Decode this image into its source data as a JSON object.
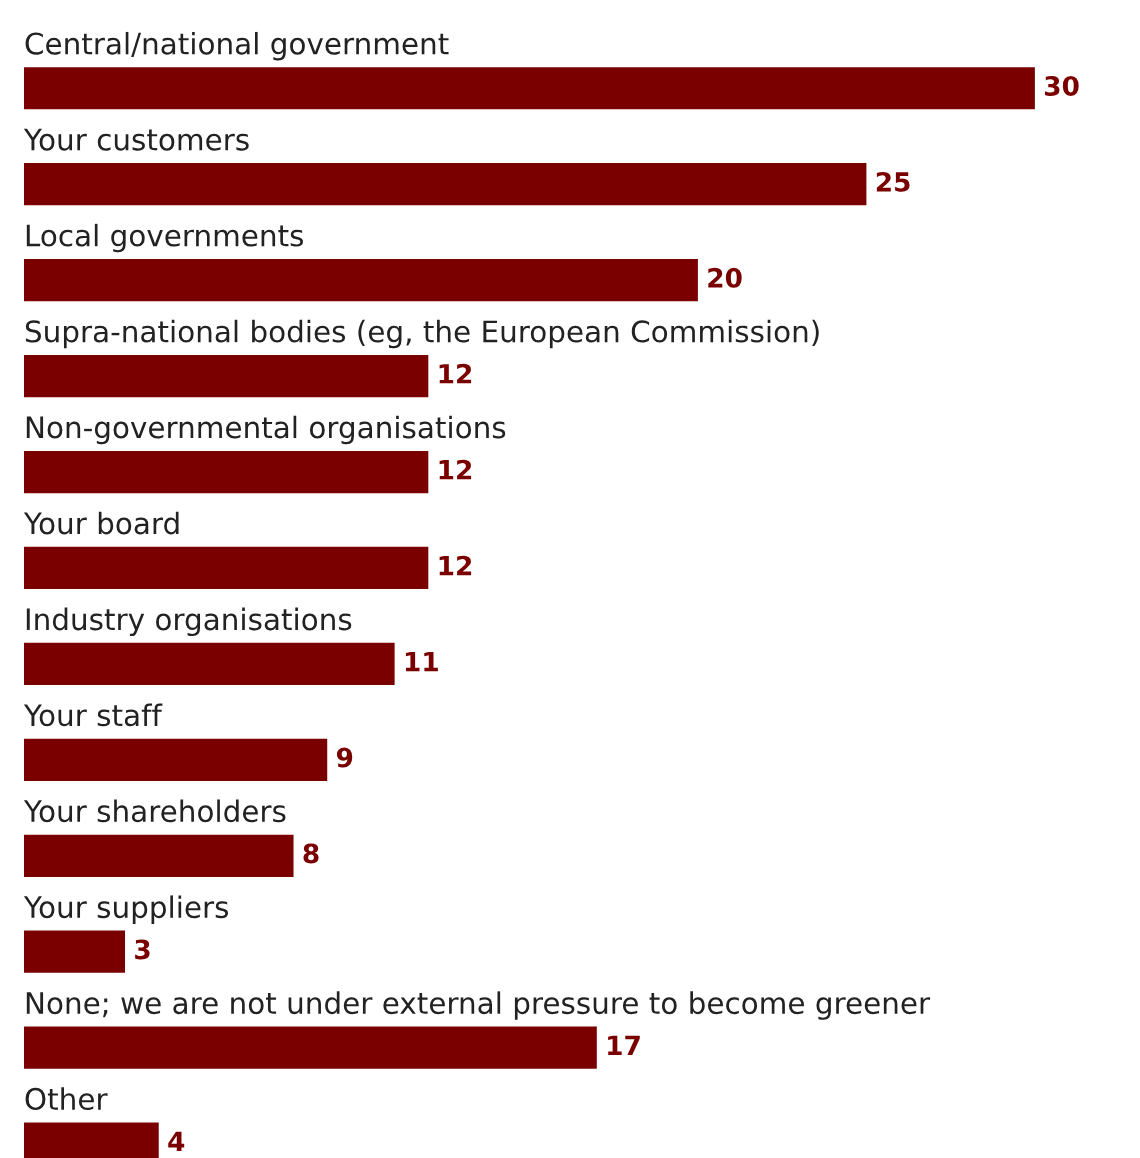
{
  "chart_data": {
    "type": "bar",
    "orientation": "horizontal",
    "data_labels": true,
    "tick_labels": false,
    "categories": [
      "Central/national government",
      "Your customers",
      "Local governments",
      "Supra-national bodies (eg, the European Commission)",
      "Non-governmental organisations",
      "Your board",
      "Industry organisations",
      "Your staff",
      "Your shareholders",
      "Your suppliers",
      "None; we are not under external pressure to become greener",
      "Other"
    ],
    "values": [
      30,
      25,
      20,
      12,
      12,
      12,
      11,
      9,
      8,
      3,
      17,
      4
    ],
    "color": "#7a0000"
  }
}
